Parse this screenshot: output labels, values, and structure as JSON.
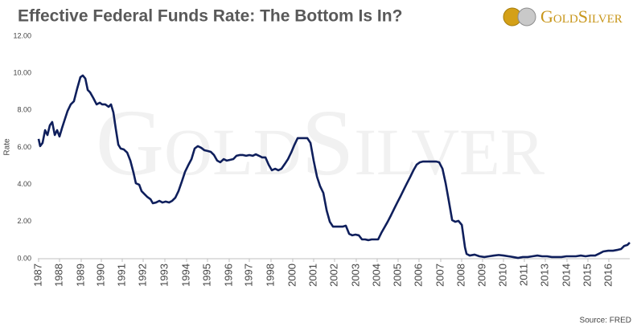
{
  "chart_data": {
    "type": "line",
    "title": "Effective Federal Funds Rate: The Bottom Is In?",
    "brand": "GoldSilver",
    "y_label": "Rate",
    "source": "Source: FRED",
    "color": "#0f1f5c",
    "grid": false,
    "xlim": [
      1987,
      2017
    ],
    "ylim": [
      0,
      12
    ],
    "yticks": [
      {
        "value": 0,
        "label": "0.00"
      },
      {
        "value": 2,
        "label": "2.00"
      },
      {
        "value": 4,
        "label": "4.00"
      },
      {
        "value": 6,
        "label": "6.00"
      },
      {
        "value": 8,
        "label": "8.00"
      },
      {
        "value": 10,
        "label": "10.00"
      },
      {
        "value": 12,
        "label": "12.00"
      }
    ],
    "xticks": [
      {
        "value": 1987.04,
        "label": "1987"
      },
      {
        "value": 1988.1,
        "label": "1988"
      },
      {
        "value": 1989.2,
        "label": "1989"
      },
      {
        "value": 1990.22,
        "label": "1990"
      },
      {
        "value": 1991.28,
        "label": "1991"
      },
      {
        "value": 1992.34,
        "label": "1992"
      },
      {
        "value": 1993.44,
        "label": "1993"
      },
      {
        "value": 1994.54,
        "label": "1994"
      },
      {
        "value": 1995.6,
        "label": "1995"
      },
      {
        "value": 1996.7,
        "label": "1996"
      },
      {
        "value": 1997.72,
        "label": "1997"
      },
      {
        "value": 1998.82,
        "label": "1998"
      },
      {
        "value": 1999.92,
        "label": "2000"
      },
      {
        "value": 2000.98,
        "label": "2001"
      },
      {
        "value": 2002.04,
        "label": "2002"
      },
      {
        "value": 2003.14,
        "label": "2003"
      },
      {
        "value": 2004.2,
        "label": "2004"
      },
      {
        "value": 2005.26,
        "label": "2005"
      },
      {
        "value": 2006.32,
        "label": "2006"
      },
      {
        "value": 2007.42,
        "label": "2007"
      },
      {
        "value": 2008.48,
        "label": "2008"
      },
      {
        "value": 2009.54,
        "label": "2009"
      },
      {
        "value": 2010.6,
        "label": "2010"
      },
      {
        "value": 2011.66,
        "label": "2011"
      },
      {
        "value": 2012.72,
        "label": "2013"
      },
      {
        "value": 2013.82,
        "label": "2014"
      },
      {
        "value": 2014.88,
        "label": "2015"
      },
      {
        "value": 2015.94,
        "label": "2016"
      }
    ],
    "x": [
      1987.04,
      1987.12,
      1987.24,
      1987.37,
      1987.49,
      1987.61,
      1987.73,
      1987.86,
      1987.98,
      1988.1,
      1988.22,
      1988.35,
      1988.51,
      1988.67,
      1988.83,
      1989.0,
      1989.16,
      1989.28,
      1989.41,
      1989.53,
      1989.65,
      1989.81,
      1989.98,
      1990.14,
      1990.26,
      1990.42,
      1990.59,
      1990.71,
      1990.83,
      1990.95,
      1991.08,
      1991.2,
      1991.36,
      1991.53,
      1991.69,
      1991.85,
      1991.97,
      1992.14,
      1992.26,
      1992.42,
      1992.54,
      1992.71,
      1992.83,
      1992.99,
      1993.16,
      1993.32,
      1993.48,
      1993.65,
      1993.81,
      1993.97,
      1994.13,
      1994.3,
      1994.46,
      1994.62,
      1994.79,
      1994.95,
      1995.11,
      1995.28,
      1995.44,
      1995.6,
      1995.77,
      1995.93,
      1996.09,
      1996.25,
      1996.42,
      1996.58,
      1996.74,
      1996.91,
      1997.07,
      1997.23,
      1997.4,
      1997.56,
      1997.72,
      1997.89,
      1998.05,
      1998.21,
      1998.37,
      1998.54,
      1998.7,
      1998.86,
      1999.03,
      1999.19,
      1999.35,
      1999.52,
      1999.68,
      1999.84,
      2000.01,
      2000.17,
      2000.33,
      2000.49,
      2000.66,
      2000.82,
      2000.98,
      2001.15,
      2001.31,
      2001.47,
      2001.64,
      2001.8,
      2001.96,
      2002.13,
      2002.29,
      2002.45,
      2002.61,
      2002.78,
      2002.94,
      2003.1,
      2003.27,
      2003.43,
      2003.59,
      2003.76,
      2003.92,
      2004.08,
      2004.25,
      2004.41,
      2004.57,
      2004.73,
      2004.9,
      2005.06,
      2005.22,
      2005.39,
      2005.55,
      2005.71,
      2005.88,
      2006.04,
      2006.2,
      2006.37,
      2006.53,
      2006.69,
      2006.85,
      2007.02,
      2007.18,
      2007.34,
      2007.51,
      2007.67,
      2007.83,
      2008.0,
      2008.16,
      2008.32,
      2008.49,
      2008.65,
      2008.73,
      2008.89,
      2009.14,
      2009.38,
      2009.63,
      2009.87,
      2010.12,
      2010.36,
      2010.61,
      2010.85,
      2011.09,
      2011.34,
      2011.58,
      2011.83,
      2012.07,
      2012.32,
      2012.56,
      2012.81,
      2013.05,
      2013.3,
      2013.54,
      2013.79,
      2014.03,
      2014.27,
      2014.52,
      2014.76,
      2015.01,
      2015.25,
      2015.5,
      2015.66,
      2015.91,
      2016.15,
      2016.4,
      2016.56,
      2016.72,
      2016.88,
      2017.0
    ],
    "values": [
      6.46,
      6.07,
      6.24,
      6.93,
      6.67,
      7.19,
      7.37,
      6.67,
      6.93,
      6.59,
      7.02,
      7.45,
      7.97,
      8.32,
      8.49,
      9.19,
      9.79,
      9.88,
      9.71,
      9.1,
      8.97,
      8.67,
      8.32,
      8.41,
      8.32,
      8.32,
      8.19,
      8.32,
      7.89,
      7.02,
      6.15,
      5.94,
      5.89,
      5.72,
      5.29,
      4.64,
      4.07,
      3.99,
      3.64,
      3.47,
      3.34,
      3.21,
      2.99,
      3.03,
      3.12,
      3.03,
      3.08,
      3.03,
      3.12,
      3.29,
      3.64,
      4.16,
      4.68,
      5.03,
      5.37,
      5.94,
      6.07,
      5.98,
      5.85,
      5.81,
      5.76,
      5.59,
      5.29,
      5.2,
      5.37,
      5.29,
      5.33,
      5.37,
      5.55,
      5.59,
      5.59,
      5.55,
      5.59,
      5.55,
      5.63,
      5.55,
      5.46,
      5.46,
      5.07,
      4.77,
      4.85,
      4.77,
      4.85,
      5.11,
      5.37,
      5.72,
      6.15,
      6.5,
      6.5,
      6.5,
      6.5,
      6.24,
      5.29,
      4.42,
      3.9,
      3.55,
      2.6,
      1.99,
      1.73,
      1.73,
      1.73,
      1.73,
      1.78,
      1.34,
      1.26,
      1.3,
      1.26,
      1.04,
      1.04,
      1.0,
      1.04,
      1.04,
      1.04,
      1.39,
      1.69,
      1.99,
      2.34,
      2.69,
      3.03,
      3.38,
      3.73,
      4.07,
      4.42,
      4.77,
      5.07,
      5.2,
      5.24,
      5.24,
      5.24,
      5.24,
      5.24,
      5.2,
      4.85,
      4.07,
      3.12,
      2.08,
      1.99,
      2.04,
      1.82,
      0.61,
      0.26,
      0.17,
      0.22,
      0.13,
      0.09,
      0.13,
      0.17,
      0.2,
      0.17,
      0.13,
      0.09,
      0.04,
      0.09,
      0.09,
      0.13,
      0.17,
      0.13,
      0.13,
      0.09,
      0.09,
      0.09,
      0.13,
      0.13,
      0.13,
      0.17,
      0.13,
      0.17,
      0.17,
      0.3,
      0.39,
      0.43,
      0.43,
      0.48,
      0.52,
      0.69,
      0.74,
      0.87
    ]
  }
}
